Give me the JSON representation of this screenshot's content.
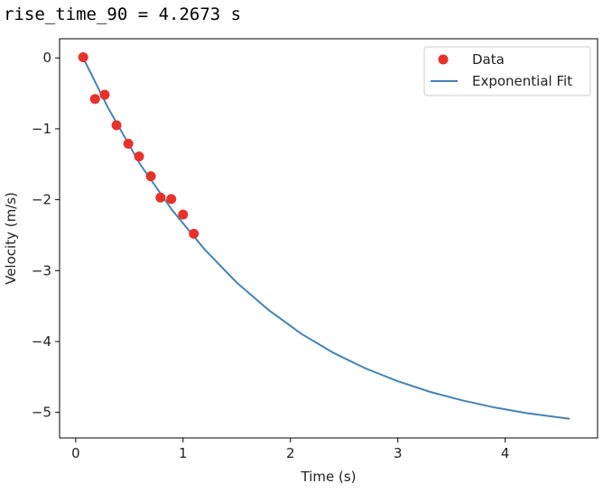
{
  "output_text": "rise_time_90 = 4.2673 s",
  "chart_data": {
    "type": "scatter",
    "xlabel": "Time (s)",
    "ylabel": "Velocity (m/s)",
    "xlim": [
      -0.15,
      4.86
    ],
    "ylim": [
      -5.36,
      0.27
    ],
    "xticks": [
      0,
      1,
      2,
      3,
      4
    ],
    "yticks": [
      0,
      -1,
      -2,
      -3,
      -4,
      -5
    ],
    "xtick_labels": [
      "0",
      "1",
      "2",
      "3",
      "4"
    ],
    "ytick_labels": [
      "0",
      "−1",
      "−2",
      "−3",
      "−4",
      "−5"
    ],
    "grid": false,
    "legend_position": "top-right",
    "series": [
      {
        "name": "Data",
        "kind": "scatter",
        "color": "#e8312a",
        "x": [
          0.07,
          0.18,
          0.27,
          0.38,
          0.49,
          0.59,
          0.7,
          0.79,
          0.89,
          1.0,
          1.1
        ],
        "y": [
          0.01,
          -0.58,
          -0.52,
          -0.95,
          -1.21,
          -1.39,
          -1.67,
          -1.97,
          -1.99,
          -2.21,
          -2.48
        ]
      },
      {
        "name": "Exponential Fit",
        "kind": "line",
        "color": "#4682b4",
        "x": [
          0.07,
          0.3,
          0.6,
          0.9,
          1.2,
          1.5,
          1.8,
          2.1,
          2.4,
          2.7,
          3.0,
          3.3,
          3.6,
          3.9,
          4.2,
          4.6
        ],
        "y": [
          0.0,
          -0.7,
          -1.5,
          -2.15,
          -2.7,
          -3.17,
          -3.56,
          -3.89,
          -4.16,
          -4.38,
          -4.56,
          -4.71,
          -4.83,
          -4.93,
          -5.01,
          -5.09
        ]
      }
    ]
  }
}
